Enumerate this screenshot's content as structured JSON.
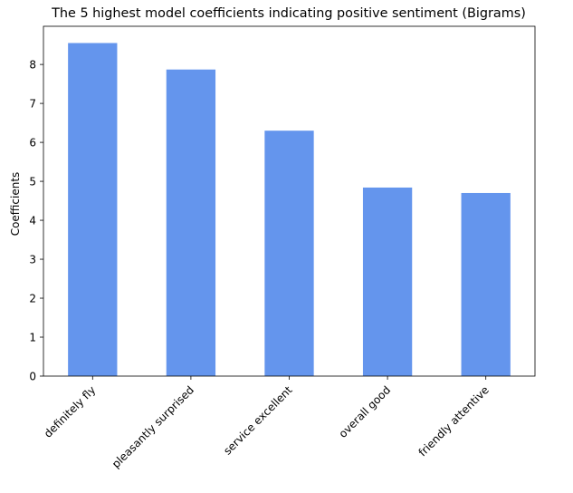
{
  "chart_data": {
    "type": "bar",
    "title": "The 5 highest model coefficients indicating positive sentiment (Bigrams)",
    "xlabel": "",
    "ylabel": "Coefficients",
    "categories": [
      "definitely fly",
      "pleasantly surprised",
      "service excellent",
      "overall good",
      "friendly attentive"
    ],
    "values": [
      8.55,
      7.87,
      6.3,
      4.84,
      4.7
    ],
    "yticks": [
      "0",
      "1",
      "2",
      "3",
      "4",
      "5",
      "6",
      "7",
      "8"
    ],
    "ylim": [
      0,
      8.98
    ],
    "bar_color": "#6495ed",
    "grid": false,
    "legend": "none"
  }
}
